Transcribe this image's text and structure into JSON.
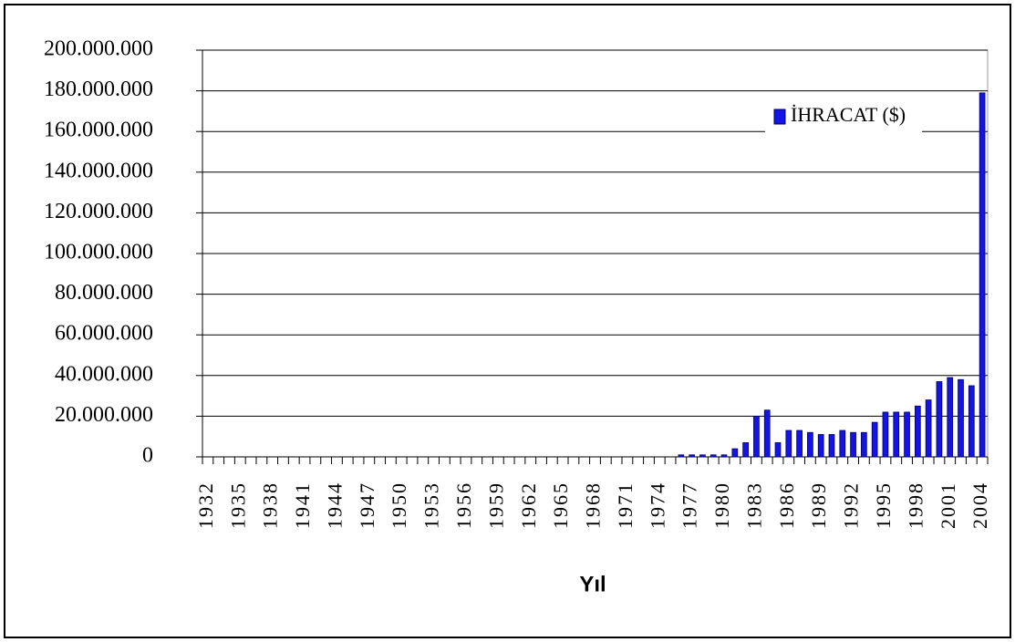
{
  "chart_data": {
    "type": "bar",
    "x_label": "Yıl",
    "categories": [
      "1932",
      null,
      null,
      "1935",
      null,
      null,
      "1938",
      null,
      null,
      "1941",
      null,
      null,
      "1944",
      null,
      null,
      "1947",
      null,
      null,
      "1950",
      null,
      null,
      "1953",
      null,
      null,
      "1956",
      null,
      null,
      "1959",
      null,
      null,
      "1962",
      null,
      null,
      "1965",
      null,
      null,
      "1968",
      null,
      null,
      "1971",
      null,
      null,
      "1974",
      null,
      null,
      "1977",
      null,
      null,
      "1980",
      null,
      null,
      "1983",
      null,
      null,
      "1986",
      null,
      null,
      "1989",
      null,
      null,
      "1992",
      null,
      null,
      "1995",
      null,
      null,
      "1998",
      null,
      null,
      "2001",
      null,
      null,
      "2004"
    ],
    "series": [
      {
        "name": "İHRACAT ($)",
        "color": "#1414e6",
        "values": [
          0,
          0,
          0,
          0,
          0,
          0,
          0,
          0,
          0,
          0,
          0,
          0,
          0,
          0,
          0,
          0,
          0,
          0,
          0,
          0,
          0,
          0,
          0,
          0,
          0,
          0,
          0,
          0,
          0,
          0,
          0,
          0,
          0,
          0,
          0,
          0,
          0,
          0,
          0,
          0,
          0,
          0,
          0,
          0,
          1000000,
          1000000,
          1000000,
          1000000,
          1000000,
          4000000,
          7000000,
          20000000,
          23000000,
          7000000,
          13000000,
          13000000,
          12000000,
          11000000,
          11000000,
          13000000,
          12000000,
          12000000,
          17000000,
          22000000,
          22000000,
          22000000,
          25000000,
          28000000,
          37000000,
          39000000,
          38000000,
          35000000,
          179000000
        ]
      }
    ],
    "ylim": [
      0,
      200000000
    ],
    "yticks": [
      0,
      {
        "value": 20000000,
        "label": "20.000.000"
      },
      {
        "value": 40000000,
        "label": "40.000.000"
      },
      {
        "value": 60000000,
        "label": "60.000.000"
      },
      {
        "value": 80000000,
        "label": "80.000.000"
      },
      {
        "value": 100000000,
        "label": "100.000.000"
      },
      {
        "value": 120000000,
        "label": "120.000.000"
      },
      {
        "value": 140000000,
        "label": "140.000.000"
      },
      {
        "value": 160000000,
        "label": "160.000.000"
      },
      {
        "value": 180000000,
        "label": "180.000.000"
      },
      {
        "value": 200000000,
        "label": "200.000.000"
      }
    ],
    "grid": true,
    "legend": "upper right"
  }
}
